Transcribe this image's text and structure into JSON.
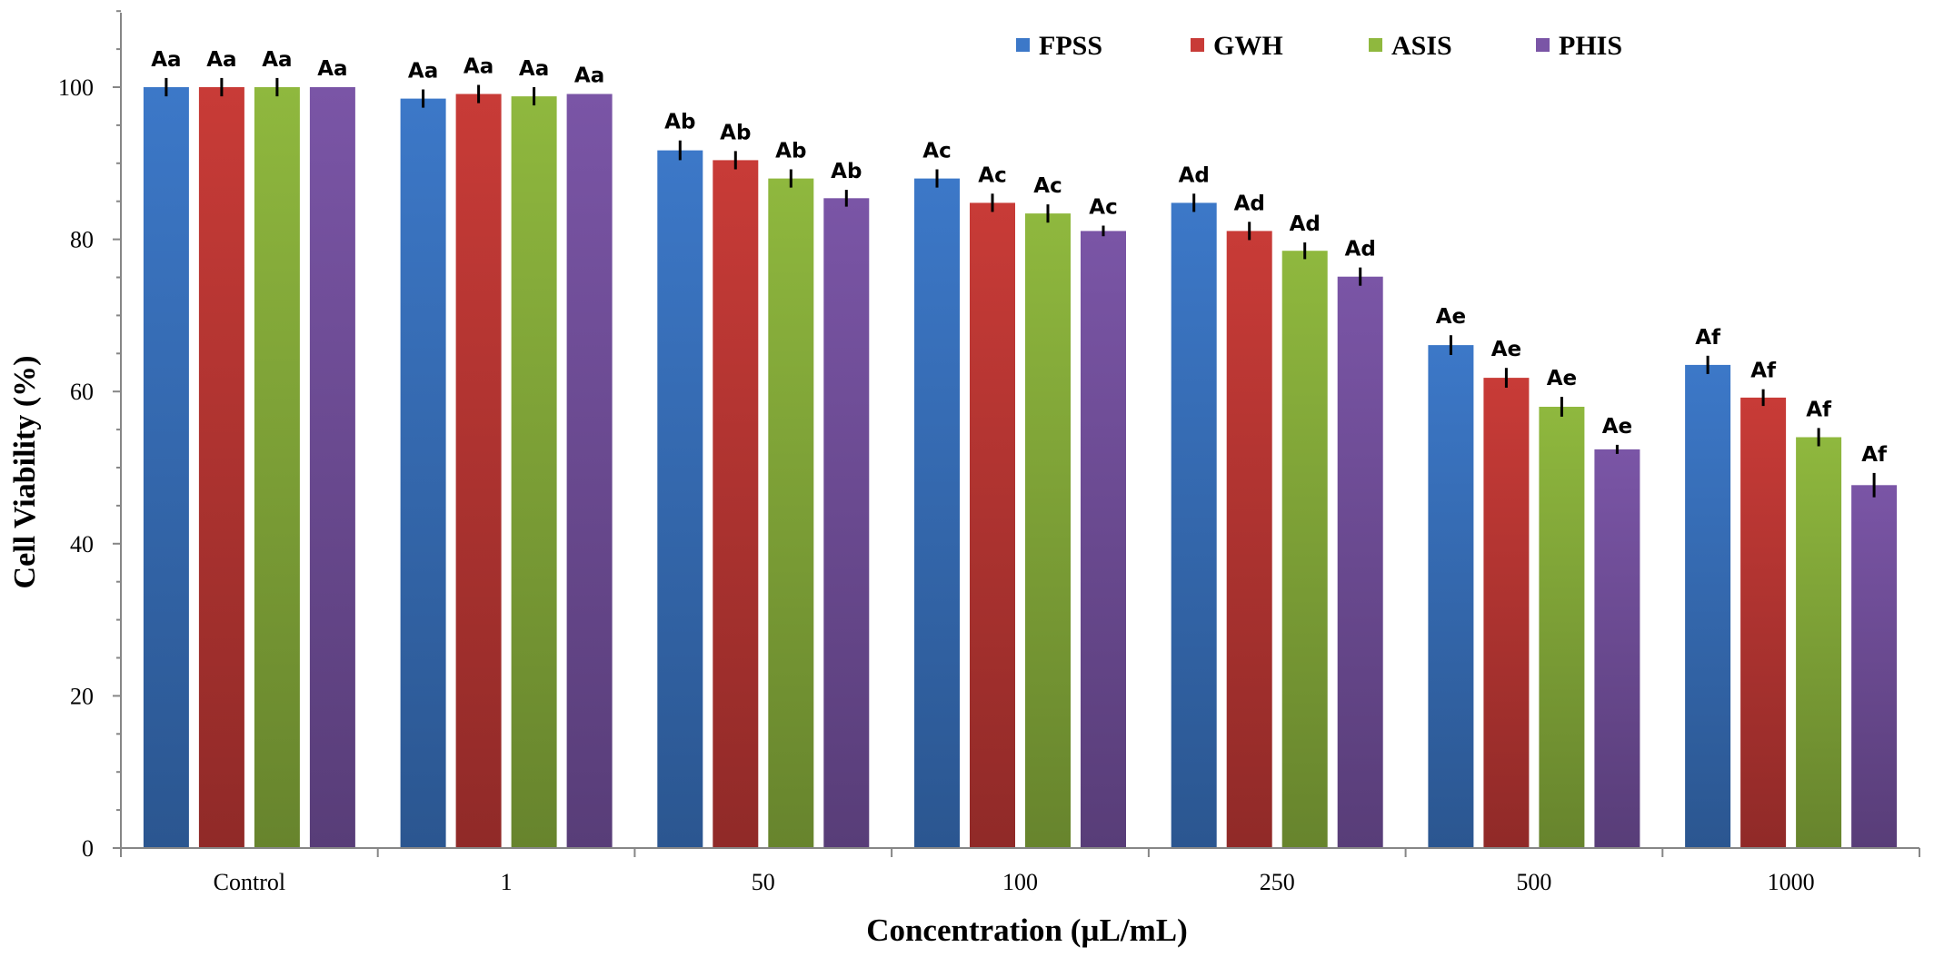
{
  "chart_data": {
    "type": "bar",
    "title": "",
    "xlabel": "Concentration (µL/mL)",
    "ylabel": "Cell Viability (%)",
    "ylim": [
      0,
      110
    ],
    "yticks": [
      0,
      20,
      40,
      60,
      80,
      100
    ],
    "grid": false,
    "legend_position": "top-right",
    "categories": [
      "Control",
      "1",
      "50",
      "100",
      "250",
      "500",
      "1000"
    ],
    "series": [
      {
        "name": "FPSS",
        "color": "#3c78c8",
        "values": [
          100,
          98.5,
          91.7,
          88.0,
          84.8,
          66.1,
          63.5
        ],
        "errors": [
          1.2,
          1.2,
          1.3,
          1.2,
          1.2,
          1.3,
          1.2
        ],
        "labels": [
          "Aa",
          "Aa",
          "Ab",
          "Ac",
          "Ad",
          "Ae",
          "Af"
        ]
      },
      {
        "name": "GWH",
        "color": "#c83b37",
        "values": [
          100,
          99.1,
          90.4,
          84.8,
          81.1,
          61.8,
          59.2
        ],
        "errors": [
          1.2,
          1.2,
          1.2,
          1.2,
          1.2,
          1.3,
          1.1
        ],
        "labels": [
          "Aa",
          "Aa",
          "Ab",
          "Ac",
          "Ad",
          "Ae",
          "Af"
        ]
      },
      {
        "name": "ASIS",
        "color": "#8fb83e",
        "values": [
          100,
          98.8,
          88.0,
          83.4,
          78.5,
          58.0,
          54.0
        ],
        "errors": [
          1.2,
          1.2,
          1.2,
          1.2,
          1.1,
          1.3,
          1.2
        ],
        "labels": [
          "Aa",
          "Aa",
          "Ab",
          "Ac",
          "Ad",
          "Ae",
          "Af"
        ]
      },
      {
        "name": "PHIS",
        "color": "#7a55a6",
        "values": [
          100,
          99.1,
          85.4,
          81.1,
          75.1,
          52.4,
          47.7
        ],
        "errors": [
          0,
          0,
          1.1,
          0.7,
          1.2,
          0.6,
          1.6
        ],
        "labels": [
          "Aa",
          "Aa",
          "Ab",
          "Ac",
          "Ad",
          "Ae",
          "Af"
        ]
      }
    ]
  }
}
